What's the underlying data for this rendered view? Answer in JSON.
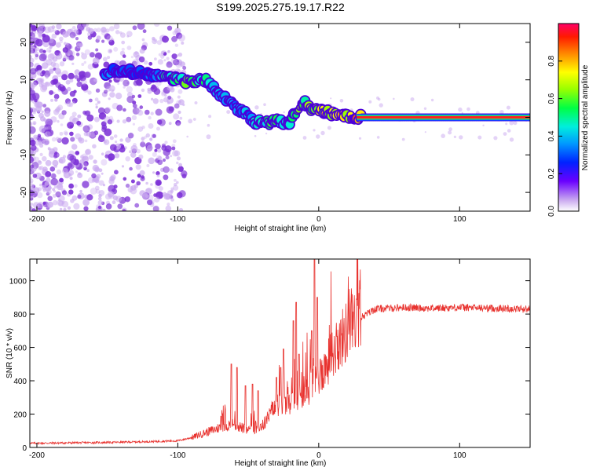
{
  "title": "S199.2025.275.19.17.R22",
  "colors": {
    "snr_line": "#e8322e",
    "spectral_point": "#7b2fd6",
    "spectral_faint": "#c9a8f0",
    "trace_core": "#ff1f1f"
  },
  "chart_data": [
    {
      "type": "heatmap",
      "name": "spectrogram",
      "xlabel": "Height of straight line (km)",
      "ylabel": "Frequency (Hz)",
      "xlim": [
        -205,
        150
      ],
      "ylim": [
        -25,
        25
      ],
      "xticks": [
        -200,
        -100,
        0,
        100
      ],
      "yticks": [
        -20,
        -10,
        0,
        10,
        20
      ],
      "colorbar": {
        "label": "Normalized spectral amplitude",
        "range": [
          0,
          1
        ],
        "ticks": [
          0.0,
          0.2,
          0.4,
          0.6,
          0.8
        ],
        "tick_labels": [
          "0.0",
          "0.2",
          "0.4",
          "0.6",
          "0.8"
        ],
        "colormap": [
          "#d9b3f5",
          "#6a00ff",
          "#0033ff",
          "#00ccff",
          "#00ff66",
          "#66ff00",
          "#ffff00",
          "#ff9900",
          "#ff2200",
          "#ff0066"
        ]
      },
      "ridge": {
        "height_km": [
          -150,
          -140,
          -130,
          -120,
          -110,
          -100,
          -90,
          -80,
          -75,
          -70,
          -65,
          -60,
          -55,
          -50,
          -45,
          -40,
          -35,
          -30,
          -25,
          -20,
          -15,
          -10,
          -5,
          0,
          5,
          10,
          15,
          20,
          25,
          30,
          150
        ],
        "frequency_hz": [
          12,
          12.5,
          12,
          11.5,
          11,
          10,
          9.5,
          10,
          8,
          6,
          5,
          3.5,
          1.5,
          0.5,
          -1.5,
          -1,
          -1.5,
          -0.5,
          -2,
          -1,
          2,
          4,
          2,
          2,
          1.5,
          1,
          0.5,
          0.5,
          0,
          0,
          0
        ],
        "amplitude": [
          0.35,
          0.3,
          0.25,
          0.3,
          0.45,
          0.55,
          0.6,
          0.5,
          0.45,
          0.4,
          0.35,
          0.35,
          0.4,
          0.35,
          0.45,
          0.5,
          0.55,
          0.5,
          0.45,
          0.5,
          0.6,
          0.6,
          0.65,
          0.75,
          0.7,
          0.65,
          0.7,
          0.75,
          0.85,
          0.9,
          0.95
        ]
      }
    },
    {
      "type": "line",
      "name": "snr",
      "xlabel": "Height of straight line (km)",
      "ylabel": "SNR (10 * v/v)",
      "xlim": [
        -205,
        150
      ],
      "ylim": [
        0,
        1130
      ],
      "xticks": [
        -200,
        -100,
        0,
        100
      ],
      "yticks": [
        0,
        200,
        400,
        600,
        800,
        1000
      ],
      "baseline": {
        "x": [
          -205,
          -150,
          -120,
          -100,
          -90,
          -80,
          -70,
          -60,
          -50,
          -40,
          -30,
          -20,
          -10,
          0,
          10,
          20,
          30,
          40,
          60,
          80,
          100,
          120,
          150
        ],
        "y": [
          25,
          30,
          35,
          40,
          60,
          90,
          120,
          140,
          100,
          130,
          250,
          260,
          320,
          420,
          560,
          700,
          780,
          830,
          840,
          835,
          840,
          835,
          830
        ]
      },
      "spikes": {
        "x": [
          -62,
          -58,
          -52,
          -47,
          -43,
          -30,
          -27,
          -25,
          -18,
          -16,
          -14,
          -5,
          -3,
          -1
        ],
        "y": [
          500,
          480,
          370,
          380,
          340,
          420,
          480,
          590,
          760,
          870,
          560,
          700,
          1130,
          900
        ]
      }
    }
  ]
}
